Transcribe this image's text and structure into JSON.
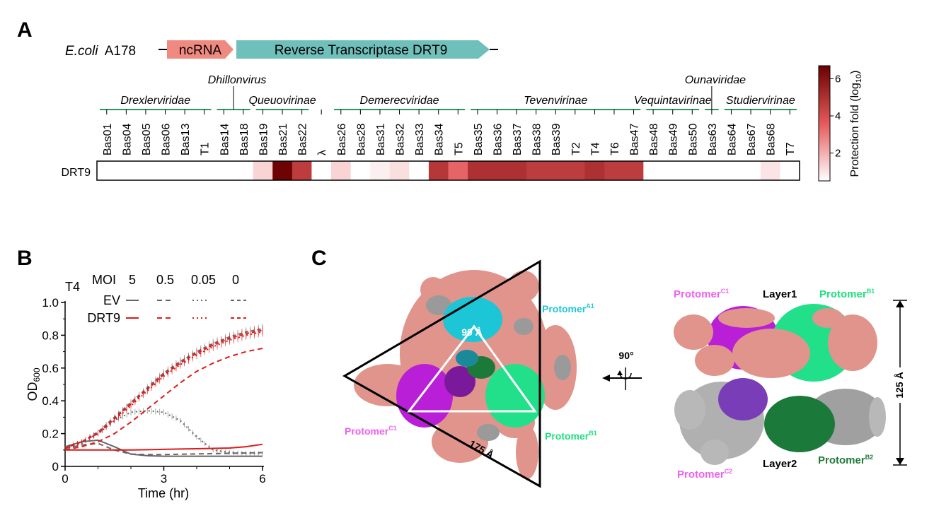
{
  "panels": {
    "A": "A",
    "B": "B",
    "C": "C"
  },
  "panelA": {
    "organism_italic": "E.coli",
    "organism_strain": "A178",
    "gene_ncrna": "ncRNA",
    "gene_rt": "Reverse Transcriptase DRT9",
    "row_label": "DRT9",
    "colorbar": {
      "label": "Protection fold (log",
      "label_sub": "10",
      "label_close": ")",
      "ticks": [
        "2",
        "4",
        "6"
      ],
      "tick_values": [
        2,
        4,
        6
      ],
      "range": [
        0.5,
        6.7
      ],
      "color_low": "#ffffff",
      "color_high": "#6a0000"
    },
    "phages": [
      "Bas01",
      "Bas04",
      "Bas05",
      "Bas06",
      "Bas13",
      "T1",
      "Bas14",
      "Bas18",
      "Bas19",
      "Bas21",
      "Bas22",
      "λ",
      "Bas26",
      "Bas28",
      "Bas31",
      "Bas32",
      "Bas33",
      "Bas34",
      "T5",
      "Bas35",
      "Bas36",
      "Bas37",
      "Bas38",
      "Bas39",
      "T2",
      "T4",
      "T6",
      "Bas47",
      "Bas48",
      "Bas49",
      "Bas50",
      "Bas63",
      "Bas64",
      "Bas67",
      "Bas68",
      "T7"
    ],
    "protection": [
      0,
      0,
      0,
      0,
      0,
      0,
      0,
      0,
      1.3,
      6.6,
      4.6,
      0,
      1.3,
      0,
      0.8,
      1.1,
      0,
      4.8,
      3.4,
      5.0,
      5.0,
      5.0,
      4.6,
      4.6,
      4.6,
      5.0,
      4.6,
      4.6,
      0,
      0,
      0,
      0,
      0,
      0,
      1.0,
      0
    ],
    "families": [
      {
        "name": "Drexlerviridae",
        "from": 0,
        "to": 5,
        "row": "low"
      },
      {
        "name": "Dhillonvirus",
        "from": 6,
        "to": 7,
        "row": "high"
      },
      {
        "name": "Queuovirinae",
        "from": 8,
        "to": 10,
        "row": "low"
      },
      {
        "name": "Demerecviridae",
        "from": 12,
        "to": 18,
        "row": "low"
      },
      {
        "name": "Tevenvirinae",
        "from": 19,
        "to": 27,
        "row": "low"
      },
      {
        "name": "Vequintavirinae",
        "from": 28,
        "to": 30,
        "row": "low"
      },
      {
        "name": "Ounaviridae",
        "from": 31,
        "to": 31,
        "row": "high"
      },
      {
        "name": "Studiervirinae",
        "from": 32,
        "to": 35,
        "row": "low"
      }
    ]
  },
  "panelB": {
    "phage_label": "T4",
    "moi_label": "MOI",
    "moi_values": [
      "5",
      "0.5",
      "0.05",
      "0"
    ],
    "legend_ev": "EV",
    "legend_drt9": "DRT9",
    "ylabel_main": "OD",
    "ylabel_sub": "600",
    "xlabel": "Time (hr)",
    "xticks": [
      "0",
      "3",
      "6"
    ],
    "yticks": [
      "0",
      "0.2",
      "0.4",
      "0.6",
      "0.8",
      "1.0"
    ],
    "colors": {
      "ev": "#666666",
      "drt9": "#dd1a1a"
    }
  },
  "chart_data": {
    "type": "line",
    "title": "T4",
    "xlabel": "Time (hr)",
    "ylabel": "OD600",
    "xlim": [
      0,
      6
    ],
    "ylim": [
      0,
      1.0
    ],
    "x": [
      0,
      0.5,
      1,
      1.5,
      2,
      2.5,
      3,
      3.5,
      4,
      4.5,
      5,
      5.5,
      6
    ],
    "series": [
      {
        "name": "EV MOI 5",
        "strain": "EV",
        "moi": "5",
        "values": [
          0.12,
          0.15,
          0.16,
          0.12,
          0.075,
          0.065,
          0.062,
          0.062,
          0.062,
          0.062,
          0.062,
          0.062,
          0.062
        ]
      },
      {
        "name": "EV MOI 0.5",
        "strain": "EV",
        "moi": "0.5",
        "values": [
          0.11,
          0.13,
          0.14,
          0.1,
          0.075,
          0.072,
          0.072,
          0.074,
          0.076,
          0.078,
          0.08,
          0.082,
          0.084
        ]
      },
      {
        "name": "EV MOI 0.05",
        "strain": "EV",
        "moi": "0.05",
        "values": [
          0.11,
          0.14,
          0.2,
          0.28,
          0.33,
          0.34,
          0.33,
          0.28,
          0.18,
          0.1,
          0.085,
          0.08,
          0.08
        ]
      },
      {
        "name": "EV MOI 0",
        "strain": "EV",
        "moi": "0",
        "values": [
          0.11,
          0.15,
          0.21,
          0.3,
          0.39,
          0.48,
          0.57,
          0.64,
          0.7,
          0.75,
          0.79,
          0.82,
          0.84
        ]
      },
      {
        "name": "DRT9 MOI 5",
        "strain": "DRT9",
        "moi": "5",
        "values": [
          0.1,
          0.1,
          0.1,
          0.1,
          0.1,
          0.102,
          0.104,
          0.106,
          0.108,
          0.11,
          0.112,
          0.12,
          0.135
        ]
      },
      {
        "name": "DRT9 MOI 0.5",
        "strain": "DRT9",
        "moi": "0.5",
        "values": [
          0.1,
          0.12,
          0.15,
          0.2,
          0.27,
          0.35,
          0.43,
          0.51,
          0.58,
          0.63,
          0.67,
          0.7,
          0.72
        ]
      },
      {
        "name": "DRT9 MOI 0.05",
        "strain": "DRT9",
        "moi": "0.05",
        "values": [
          0.11,
          0.15,
          0.2,
          0.28,
          0.37,
          0.46,
          0.55,
          0.62,
          0.68,
          0.73,
          0.77,
          0.8,
          0.82
        ]
      },
      {
        "name": "DRT9 MOI 0",
        "strain": "DRT9",
        "moi": "0",
        "values": [
          0.11,
          0.15,
          0.2,
          0.29,
          0.38,
          0.47,
          0.56,
          0.63,
          0.69,
          0.74,
          0.78,
          0.81,
          0.83
        ]
      }
    ]
  },
  "panelC": {
    "left_top_protomer": "Protomer",
    "left_top_sup": "A1",
    "left_left_protomer": "Protomer",
    "left_left_sup": "C1",
    "left_right_protomer": "Protomer",
    "left_right_sup": "B1",
    "inner_distance": "90 Å",
    "outer_distance": "175 Å",
    "rotation": "90°",
    "right_c1": "Protomer",
    "right_c1_sup": "C1",
    "right_b1": "Protomer",
    "right_b1_sup": "B1",
    "right_c2": "Protomer",
    "right_c2_sup": "C2",
    "right_b2": "Protomer",
    "right_b2_sup": "B2",
    "layer1": "Layer1",
    "layer2": "Layer2",
    "height": "125 Å",
    "colors": {
      "salmon": "#e0948c",
      "cyan": "#1cc6d6",
      "magenta": "#b81fd6",
      "green": "#22e08a",
      "darkgreen": "#1b7a3a",
      "grey": "#a8a8a8",
      "purple": "#7a3db8",
      "label_magenta": "#f05ff0",
      "label_cyan": "#21c6d6",
      "label_green": "#1fe07f",
      "label_darkgreen": "#1f7a38"
    }
  }
}
